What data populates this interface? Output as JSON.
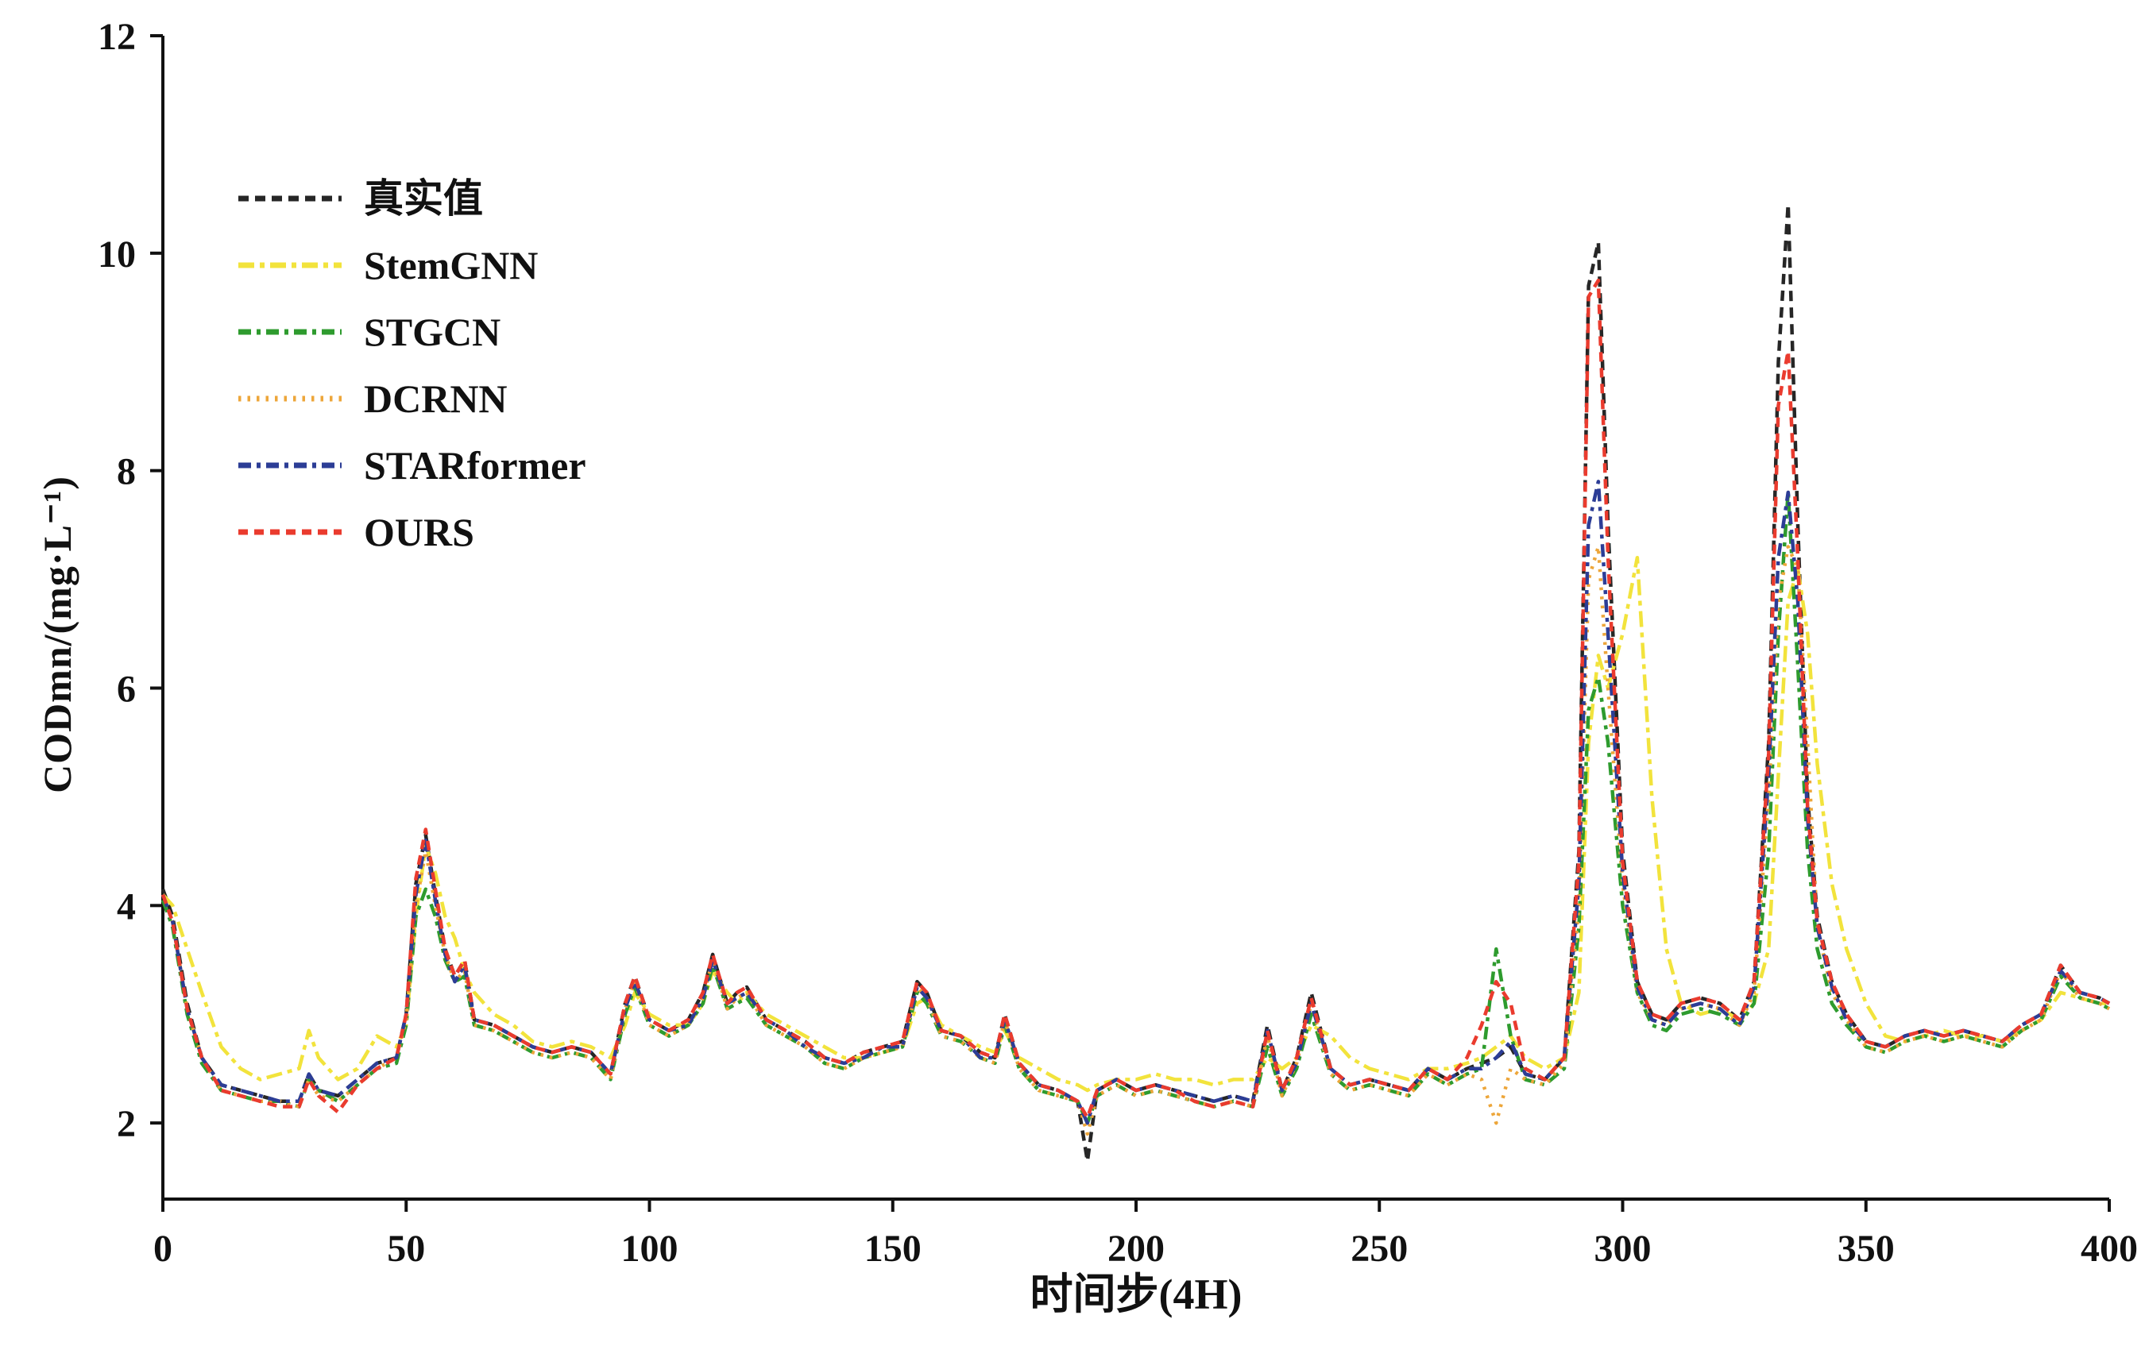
{
  "figure": {
    "background": "#ffffff",
    "axis_color": "#111111"
  },
  "chart_data": {
    "type": "line",
    "title": "",
    "xlabel": "时间步(4H)",
    "ylabel": "CODmn/(mg·L⁻¹)",
    "xlim": [
      0,
      400
    ],
    "ylim": [
      1.3,
      12
    ],
    "xticks": [
      0,
      50,
      100,
      150,
      200,
      250,
      300,
      350,
      400
    ],
    "yticks": [
      2,
      4,
      6,
      8,
      10,
      12
    ],
    "grid": false,
    "legend_position": "upper-left",
    "x": [
      0,
      2,
      5,
      8,
      12,
      16,
      20,
      24,
      28,
      30,
      32,
      36,
      40,
      44,
      48,
      50,
      52,
      54,
      56,
      58,
      60,
      62,
      64,
      68,
      72,
      76,
      80,
      84,
      88,
      92,
      95,
      97,
      100,
      104,
      108,
      111,
      113,
      116,
      118,
      120,
      124,
      128,
      132,
      136,
      140,
      144,
      148,
      152,
      155,
      157,
      160,
      164,
      168,
      171,
      173,
      176,
      180,
      184,
      188,
      190,
      192,
      196,
      200,
      204,
      208,
      212,
      216,
      220,
      224,
      227,
      230,
      233,
      236,
      240,
      244,
      248,
      252,
      256,
      260,
      264,
      268,
      271,
      274,
      277,
      280,
      284,
      288,
      291,
      293,
      295,
      297,
      300,
      303,
      306,
      309,
      312,
      316,
      320,
      324,
      327,
      330,
      332,
      334,
      336,
      338,
      340,
      343,
      346,
      350,
      354,
      358,
      362,
      366,
      370,
      374,
      378,
      382,
      386,
      390,
      394,
      398,
      400
    ],
    "series": [
      {
        "name": "真实值",
        "color": "#262626",
        "dash": "13,8",
        "width": 4.5,
        "values": [
          4.15,
          3.9,
          3.1,
          2.6,
          2.35,
          2.3,
          2.25,
          2.2,
          2.2,
          2.45,
          2.3,
          2.25,
          2.4,
          2.55,
          2.6,
          3.0,
          4.2,
          4.65,
          4.1,
          3.6,
          3.35,
          3.5,
          2.95,
          2.9,
          2.8,
          2.7,
          2.65,
          2.7,
          2.65,
          2.45,
          3.1,
          3.35,
          2.95,
          2.85,
          2.95,
          3.2,
          3.55,
          3.1,
          3.2,
          3.25,
          2.95,
          2.85,
          2.75,
          2.6,
          2.55,
          2.65,
          2.7,
          2.75,
          3.3,
          3.2,
          2.85,
          2.8,
          2.65,
          2.6,
          3.0,
          2.55,
          2.35,
          2.3,
          2.2,
          1.65,
          2.3,
          2.4,
          2.3,
          2.35,
          2.3,
          2.25,
          2.2,
          2.25,
          2.2,
          2.9,
          2.3,
          2.6,
          3.2,
          2.5,
          2.35,
          2.4,
          2.35,
          2.3,
          2.5,
          2.4,
          2.5,
          2.55,
          2.6,
          2.7,
          2.45,
          2.4,
          2.6,
          4.5,
          9.7,
          10.1,
          7.5,
          4.5,
          3.3,
          3.0,
          2.95,
          3.1,
          3.15,
          3.1,
          2.95,
          3.3,
          5.5,
          9.0,
          10.45,
          7.5,
          5.0,
          3.9,
          3.3,
          3.0,
          2.75,
          2.7,
          2.8,
          2.85,
          2.8,
          2.85,
          2.8,
          2.75,
          2.9,
          3.0,
          3.45,
          3.2,
          3.15,
          3.1
        ]
      },
      {
        "name": "StemGNN",
        "color": "#f2e33c",
        "dash": "20,7,6,7",
        "width": 4.5,
        "values": [
          4.1,
          4.0,
          3.6,
          3.2,
          2.7,
          2.5,
          2.4,
          2.45,
          2.5,
          2.85,
          2.6,
          2.4,
          2.5,
          2.8,
          2.7,
          2.9,
          3.9,
          4.55,
          4.3,
          3.9,
          3.7,
          3.4,
          3.2,
          3.0,
          2.9,
          2.75,
          2.7,
          2.75,
          2.7,
          2.6,
          2.9,
          3.2,
          3.0,
          2.9,
          2.9,
          3.1,
          3.4,
          3.2,
          3.1,
          3.2,
          3.0,
          2.9,
          2.8,
          2.7,
          2.6,
          2.6,
          2.65,
          2.7,
          3.1,
          3.15,
          2.9,
          2.8,
          2.7,
          2.65,
          2.85,
          2.6,
          2.5,
          2.4,
          2.35,
          2.3,
          2.35,
          2.4,
          2.4,
          2.45,
          2.4,
          2.4,
          2.35,
          2.4,
          2.4,
          2.6,
          2.5,
          2.6,
          2.9,
          2.8,
          2.6,
          2.5,
          2.45,
          2.4,
          2.5,
          2.5,
          2.55,
          2.6,
          2.7,
          2.8,
          2.6,
          2.5,
          2.6,
          3.2,
          5.5,
          6.3,
          6.0,
          6.5,
          7.2,
          5.0,
          3.6,
          3.1,
          3.0,
          3.05,
          2.95,
          3.1,
          3.6,
          5.2,
          6.8,
          7.1,
          6.5,
          5.3,
          4.2,
          3.6,
          3.1,
          2.8,
          2.75,
          2.8,
          2.85,
          2.8,
          2.8,
          2.75,
          2.85,
          2.95,
          3.2,
          3.15,
          3.1,
          3.1
        ]
      },
      {
        "name": "STGCN",
        "color": "#2e9b2e",
        "dash": "16,7,5,7",
        "width": 4.5,
        "values": [
          4.05,
          3.8,
          3.0,
          2.55,
          2.3,
          2.25,
          2.2,
          2.2,
          2.15,
          2.4,
          2.3,
          2.2,
          2.35,
          2.5,
          2.55,
          2.9,
          3.9,
          4.15,
          3.9,
          3.5,
          3.3,
          3.35,
          2.9,
          2.85,
          2.75,
          2.65,
          2.6,
          2.65,
          2.6,
          2.4,
          3.0,
          3.25,
          2.9,
          2.8,
          2.9,
          3.1,
          3.45,
          3.05,
          3.1,
          3.15,
          2.9,
          2.8,
          2.7,
          2.55,
          2.5,
          2.6,
          2.65,
          2.7,
          3.2,
          3.1,
          2.8,
          2.75,
          2.6,
          2.55,
          2.9,
          2.5,
          2.3,
          2.25,
          2.2,
          2.0,
          2.25,
          2.35,
          2.25,
          2.3,
          2.25,
          2.2,
          2.15,
          2.2,
          2.15,
          2.7,
          2.25,
          2.5,
          3.0,
          2.45,
          2.3,
          2.35,
          2.3,
          2.25,
          2.45,
          2.35,
          2.45,
          2.5,
          3.6,
          2.8,
          2.4,
          2.35,
          2.5,
          3.8,
          5.8,
          6.1,
          5.5,
          4.0,
          3.2,
          2.9,
          2.85,
          3.0,
          3.05,
          3.0,
          2.9,
          3.1,
          4.5,
          6.5,
          7.8,
          6.2,
          4.5,
          3.6,
          3.1,
          2.9,
          2.7,
          2.65,
          2.75,
          2.8,
          2.75,
          2.8,
          2.75,
          2.7,
          2.85,
          2.95,
          3.35,
          3.15,
          3.1,
          3.05
        ]
      },
      {
        "name": "DCRNN",
        "color": "#eda63a",
        "dash": "3.5,8",
        "width": 4.5,
        "values": [
          4.1,
          3.85,
          3.05,
          2.6,
          2.3,
          2.25,
          2.2,
          2.2,
          2.15,
          2.4,
          2.25,
          2.2,
          2.35,
          2.5,
          2.6,
          2.95,
          4.0,
          4.5,
          4.0,
          3.55,
          3.3,
          3.4,
          2.9,
          2.85,
          2.75,
          2.65,
          2.6,
          2.65,
          2.6,
          2.4,
          3.05,
          3.3,
          2.9,
          2.8,
          2.9,
          3.15,
          3.5,
          3.05,
          3.15,
          3.2,
          2.9,
          2.8,
          2.7,
          2.55,
          2.5,
          2.6,
          2.65,
          2.7,
          3.25,
          3.15,
          2.8,
          2.75,
          2.6,
          2.55,
          2.95,
          2.5,
          2.3,
          2.25,
          2.2,
          1.9,
          2.25,
          2.35,
          2.25,
          2.3,
          2.25,
          2.2,
          2.15,
          2.2,
          2.15,
          2.8,
          2.25,
          2.55,
          3.1,
          2.45,
          2.3,
          2.35,
          2.3,
          2.25,
          2.45,
          2.35,
          2.45,
          2.4,
          2.0,
          2.5,
          2.4,
          2.35,
          2.55,
          4.0,
          7.0,
          7.3,
          6.0,
          4.2,
          3.2,
          2.95,
          2.9,
          3.05,
          3.1,
          3.05,
          2.9,
          3.2,
          5.0,
          6.8,
          7.3,
          7.1,
          5.5,
          3.8,
          3.2,
          2.95,
          2.7,
          2.65,
          2.75,
          2.8,
          2.75,
          2.8,
          2.75,
          2.7,
          2.85,
          2.95,
          3.4,
          3.15,
          3.1,
          3.05
        ]
      },
      {
        "name": "STARformer",
        "color": "#2c3d96",
        "dash": "16,7,5,7",
        "width": 4.5,
        "values": [
          4.1,
          3.85,
          3.05,
          2.6,
          2.35,
          2.3,
          2.25,
          2.2,
          2.2,
          2.45,
          2.3,
          2.25,
          2.4,
          2.55,
          2.6,
          3.0,
          4.1,
          4.6,
          4.05,
          3.55,
          3.3,
          3.45,
          2.95,
          2.9,
          2.8,
          2.7,
          2.65,
          2.7,
          2.65,
          2.45,
          3.05,
          3.3,
          2.95,
          2.85,
          2.9,
          3.15,
          3.5,
          3.1,
          3.15,
          3.2,
          2.95,
          2.85,
          2.7,
          2.6,
          2.55,
          2.6,
          2.7,
          2.7,
          3.25,
          3.15,
          2.85,
          2.8,
          2.6,
          2.6,
          2.95,
          2.55,
          2.35,
          2.3,
          2.2,
          2.0,
          2.3,
          2.4,
          2.3,
          2.35,
          2.3,
          2.25,
          2.2,
          2.25,
          2.2,
          2.85,
          2.3,
          2.55,
          3.1,
          2.5,
          2.35,
          2.4,
          2.35,
          2.3,
          2.5,
          2.4,
          2.5,
          2.5,
          2.6,
          2.75,
          2.45,
          2.4,
          2.6,
          4.2,
          7.5,
          7.9,
          6.5,
          4.3,
          3.25,
          2.95,
          2.9,
          3.05,
          3.1,
          3.05,
          2.9,
          3.25,
          5.2,
          7.2,
          7.8,
          6.8,
          4.8,
          3.8,
          3.25,
          2.95,
          2.75,
          2.7,
          2.8,
          2.85,
          2.8,
          2.85,
          2.8,
          2.75,
          2.9,
          3.0,
          3.4,
          3.2,
          3.15,
          3.1
        ]
      },
      {
        "name": "OURS",
        "color": "#ea3b2e",
        "dash": "12,8",
        "width": 4.5,
        "values": [
          4.1,
          3.85,
          3.05,
          2.6,
          2.3,
          2.25,
          2.2,
          2.15,
          2.15,
          2.4,
          2.25,
          2.1,
          2.35,
          2.5,
          2.6,
          3.0,
          4.25,
          4.7,
          4.15,
          3.6,
          3.35,
          3.5,
          2.95,
          2.9,
          2.8,
          2.7,
          2.65,
          2.7,
          2.65,
          2.45,
          3.1,
          3.35,
          2.95,
          2.85,
          2.95,
          3.2,
          3.55,
          3.1,
          3.2,
          3.25,
          2.95,
          2.85,
          2.75,
          2.6,
          2.55,
          2.65,
          2.7,
          2.75,
          3.3,
          3.2,
          2.85,
          2.8,
          2.65,
          2.6,
          3.0,
          2.55,
          2.35,
          2.3,
          2.2,
          2.05,
          2.3,
          2.4,
          2.3,
          2.35,
          2.3,
          2.2,
          2.15,
          2.2,
          2.15,
          2.85,
          2.3,
          2.6,
          3.15,
          2.5,
          2.35,
          2.4,
          2.35,
          2.3,
          2.5,
          2.4,
          2.6,
          2.9,
          3.3,
          3.1,
          2.5,
          2.4,
          2.6,
          4.4,
          9.6,
          9.75,
          7.2,
          4.4,
          3.3,
          3.0,
          2.95,
          3.1,
          3.15,
          3.1,
          2.95,
          3.3,
          5.4,
          8.6,
          9.1,
          7.2,
          4.9,
          3.85,
          3.3,
          3.0,
          2.75,
          2.7,
          2.8,
          2.85,
          2.8,
          2.85,
          2.8,
          2.75,
          2.9,
          3.0,
          3.45,
          3.2,
          3.15,
          3.1
        ]
      }
    ]
  }
}
